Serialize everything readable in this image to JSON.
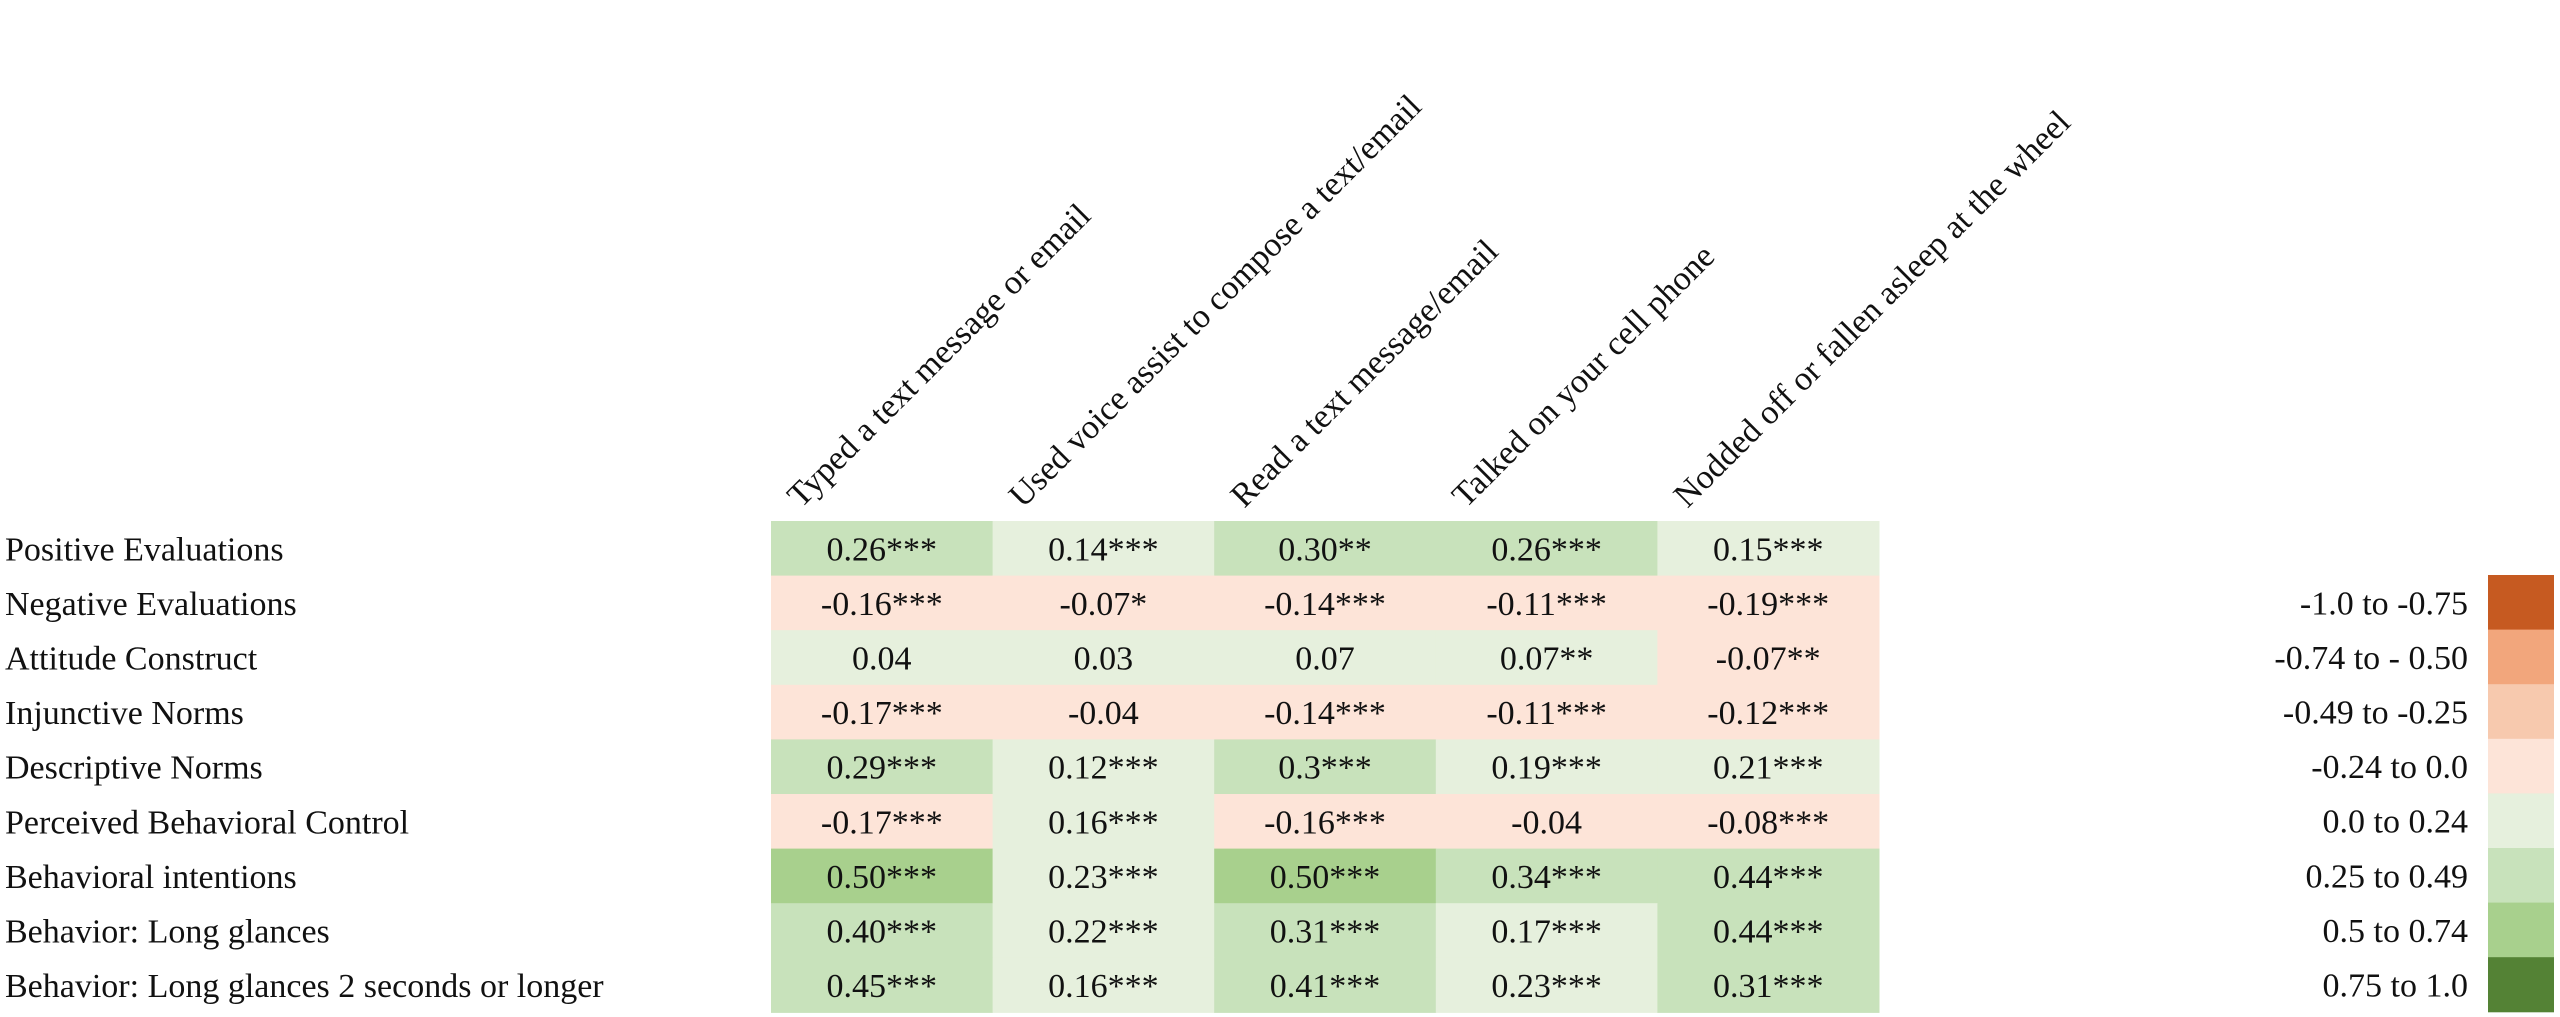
{
  "chart_data": {
    "type": "heatmap",
    "columns": [
      "Typed a text message or email",
      "Used voice assist to compose a text/email",
      "Read a text message/email",
      "Talked on your cell phone",
      "Nodded off or fallen asleep at the wheel"
    ],
    "rows": [
      {
        "label": "Positive Evaluations",
        "values": [
          0.26,
          0.14,
          0.3,
          0.26,
          0.15
        ],
        "text": [
          "0.26***",
          "0.14***",
          "0.30**",
          "0.26***",
          "0.15***"
        ]
      },
      {
        "label": "Negative Evaluations",
        "values": [
          -0.16,
          -0.07,
          -0.14,
          -0.11,
          -0.19
        ],
        "text": [
          "-0.16***",
          "-0.07*",
          "-0.14***",
          "-0.11***",
          "-0.19***"
        ]
      },
      {
        "label": "Attitude Construct",
        "values": [
          0.04,
          0.03,
          0.07,
          0.07,
          -0.07
        ],
        "text": [
          "0.04",
          "0.03",
          "0.07",
          "0.07**",
          "-0.07**"
        ]
      },
      {
        "label": "Injunctive Norms",
        "values": [
          -0.17,
          -0.04,
          -0.14,
          -0.11,
          -0.12
        ],
        "text": [
          "-0.17***",
          "-0.04",
          "-0.14***",
          "-0.11***",
          "-0.12***"
        ]
      },
      {
        "label": "Descriptive Norms",
        "values": [
          0.29,
          0.12,
          0.3,
          0.19,
          0.21
        ],
        "text": [
          "0.29***",
          "0.12***",
          "0.3***",
          "0.19***",
          "0.21***"
        ]
      },
      {
        "label": "Perceived Behavioral Control",
        "values": [
          -0.17,
          0.16,
          -0.16,
          -0.04,
          -0.08
        ],
        "text": [
          "-0.17***",
          "0.16***",
          "-0.16***",
          "-0.04",
          "-0.08***"
        ]
      },
      {
        "label": "Behavioral intentions",
        "values": [
          0.5,
          0.23,
          0.5,
          0.34,
          0.44
        ],
        "text": [
          "0.50***",
          "0.23***",
          "0.50***",
          "0.34***",
          "0.44***"
        ]
      },
      {
        "label": "Behavior: Long glances",
        "values": [
          0.4,
          0.22,
          0.31,
          0.17,
          0.44
        ],
        "text": [
          "0.40***",
          "0.22***",
          "0.31***",
          "0.17***",
          "0.44***"
        ]
      },
      {
        "label": "Behavior: Long glances 2 seconds or longer",
        "values": [
          0.45,
          0.16,
          0.41,
          0.23,
          0.31
        ],
        "text": [
          "0.45***",
          "0.16***",
          "0.41***",
          "0.23***",
          "0.31***"
        ]
      }
    ],
    "legend": {
      "placement": "right",
      "bins": [
        {
          "label": "-1.0 to -0.75",
          "min": -1.0,
          "max": -0.75,
          "color": "#c65a21"
        },
        {
          "label": "-0.74 to - 0.50",
          "min": -0.74,
          "max": -0.5,
          "color": "#f2a67c"
        },
        {
          "label": "-0.49 to -0.25",
          "min": -0.49,
          "max": -0.25,
          "color": "#f7c9ae"
        },
        {
          "label": "-0.24 to 0.0",
          "min": -0.24,
          "max": 0.0,
          "color": "#fde4d8"
        },
        {
          "label": "0.0 to 0.24",
          "min": 0.0,
          "max": 0.24,
          "color": "#e6f0dd"
        },
        {
          "label": "0.25 to 0.49",
          "min": 0.25,
          "max": 0.49,
          "color": "#c8e2bb"
        },
        {
          "label": "0.5 to 0.74",
          "min": 0.5,
          "max": 0.74,
          "color": "#a8d08d"
        },
        {
          "label": "0.75 to 1.0",
          "min": 0.75,
          "max": 1.0,
          "color": "#548235"
        }
      ]
    }
  }
}
